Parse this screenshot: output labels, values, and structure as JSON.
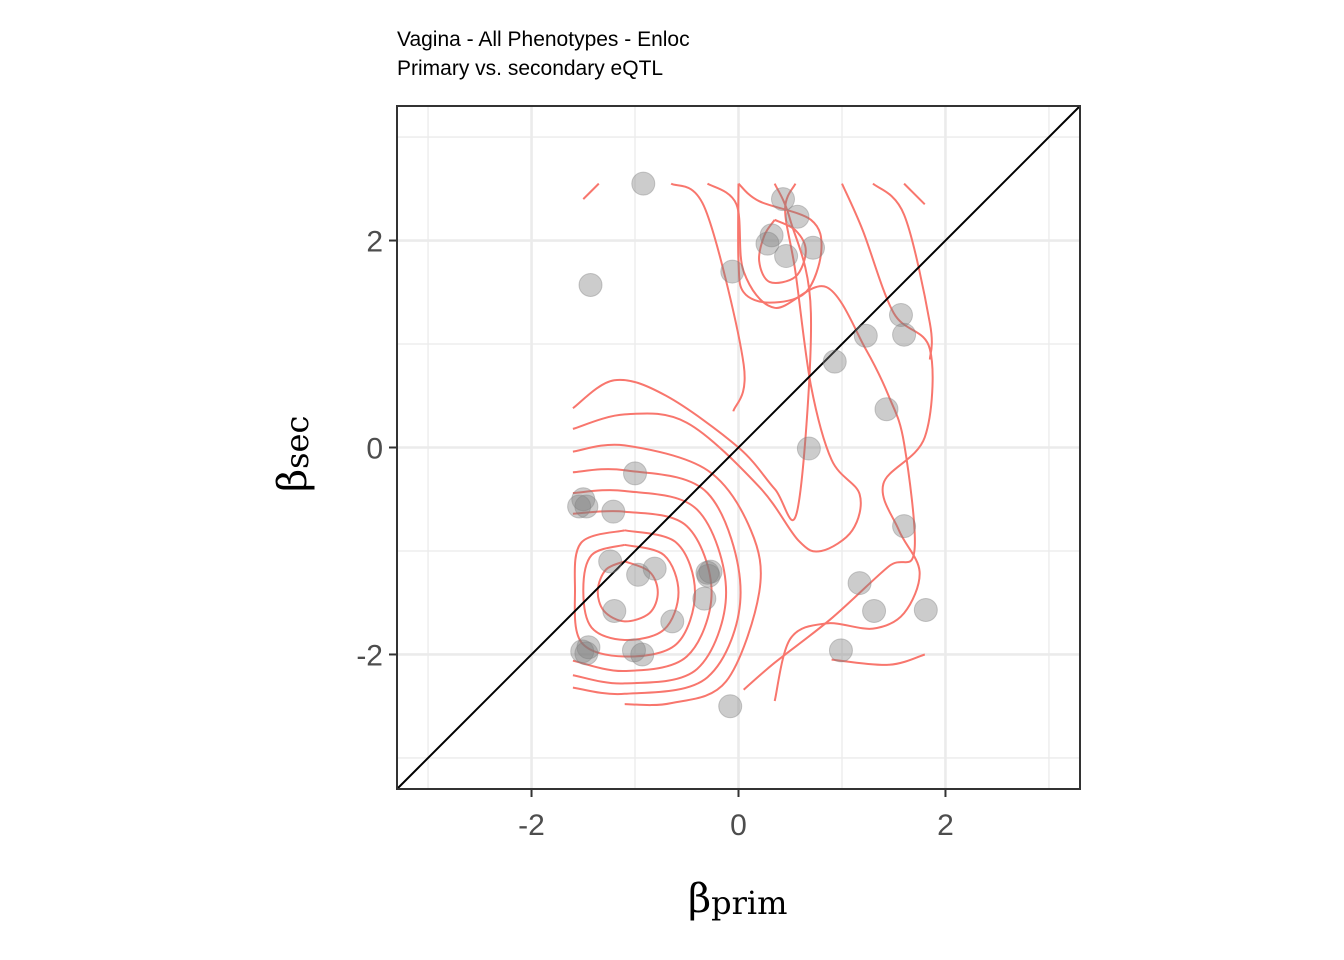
{
  "chart_data": {
    "type": "scatter",
    "title": "Vagina - All Phenotypes - Enloc",
    "subtitle": "Primary vs. secondary eQTL",
    "xlabel": {
      "symbol": "β",
      "subscript": "prim"
    },
    "ylabel": {
      "symbol": "β",
      "subscript": "sec"
    },
    "xlim": [
      -3.3,
      3.3
    ],
    "ylim": [
      -3.3,
      3.3
    ],
    "x_ticks": [
      -2,
      0,
      2
    ],
    "y_ticks": [
      -2,
      0,
      2
    ],
    "x_tick_labels": [
      "-2",
      "0",
      "2"
    ],
    "y_tick_labels": [
      "-2",
      "0",
      "2"
    ],
    "grid": true,
    "diagonal_line": true,
    "density_contours": true,
    "colors": {
      "points": "#808080",
      "contours": "#f8766d",
      "diagonal": "#000000",
      "grid": "#ebebeb",
      "panel_border": "#333333"
    },
    "series": [
      {
        "points": [
          {
            "x": -0.92,
            "y": 2.55
          },
          {
            "x": -1.43,
            "y": 1.57
          },
          {
            "x": 0.43,
            "y": 2.4
          },
          {
            "x": 0.57,
            "y": 2.23
          },
          {
            "x": 0.32,
            "y": 2.05
          },
          {
            "x": 0.28,
            "y": 1.97
          },
          {
            "x": 0.72,
            "y": 1.93
          },
          {
            "x": 0.46,
            "y": 1.85
          },
          {
            "x": -0.06,
            "y": 1.7
          },
          {
            "x": 1.57,
            "y": 1.28
          },
          {
            "x": 1.6,
            "y": 1.09
          },
          {
            "x": 1.23,
            "y": 1.08
          },
          {
            "x": 0.93,
            "y": 0.83
          },
          {
            "x": 1.43,
            "y": 0.37
          },
          {
            "x": 0.68,
            "y": -0.01
          },
          {
            "x": -1.0,
            "y": -0.25
          },
          {
            "x": -1.5,
            "y": -0.5
          },
          {
            "x": -1.54,
            "y": -0.57
          },
          {
            "x": -1.47,
            "y": -0.57
          },
          {
            "x": -1.21,
            "y": -0.62
          },
          {
            "x": 1.6,
            "y": -0.76
          },
          {
            "x": -1.24,
            "y": -1.1
          },
          {
            "x": -0.81,
            "y": -1.17
          },
          {
            "x": -0.97,
            "y": -1.23
          },
          {
            "x": -0.27,
            "y": -1.2
          },
          {
            "x": -0.29,
            "y": -1.24
          },
          {
            "x": -0.3,
            "y": -1.21
          },
          {
            "x": 1.17,
            "y": -1.31
          },
          {
            "x": -0.33,
            "y": -1.46
          },
          {
            "x": -1.2,
            "y": -1.58
          },
          {
            "x": 1.31,
            "y": -1.58
          },
          {
            "x": 1.81,
            "y": -1.57
          },
          {
            "x": -0.64,
            "y": -1.68
          },
          {
            "x": -1.45,
            "y": -1.93
          },
          {
            "x": -1.51,
            "y": -1.97
          },
          {
            "x": -1.47,
            "y": -1.99
          },
          {
            "x": -1.01,
            "y": -1.96
          },
          {
            "x": -0.93,
            "y": -2.0
          },
          {
            "x": 0.99,
            "y": -1.96
          },
          {
            "x": -0.08,
            "y": -2.5
          }
        ]
      }
    ],
    "contours": [
      [
        [
          -1.1,
          -1.1
        ],
        [
          -0.86,
          -1.2
        ],
        [
          -0.78,
          -1.4
        ],
        [
          -0.86,
          -1.6
        ],
        [
          -1.1,
          -1.68
        ],
        [
          -1.3,
          -1.58
        ],
        [
          -1.36,
          -1.38
        ],
        [
          -1.28,
          -1.18
        ],
        [
          -1.1,
          -1.1
        ]
      ],
      [
        [
          -1.1,
          -0.94
        ],
        [
          -0.72,
          -1.04
        ],
        [
          -0.58,
          -1.4
        ],
        [
          -0.72,
          -1.76
        ],
        [
          -1.1,
          -1.86
        ],
        [
          -1.42,
          -1.74
        ],
        [
          -1.5,
          -1.38
        ],
        [
          -1.42,
          -1.04
        ],
        [
          -1.1,
          -0.94
        ]
      ],
      [
        [
          -1.1,
          -0.8
        ],
        [
          -0.6,
          -0.92
        ],
        [
          -0.42,
          -1.4
        ],
        [
          -0.6,
          -1.9
        ],
        [
          -1.1,
          -2.02
        ],
        [
          -1.52,
          -1.88
        ],
        [
          -1.58,
          -1.38
        ],
        [
          -1.52,
          -0.92
        ],
        [
          -1.1,
          -0.8
        ]
      ],
      [
        [
          -1.6,
          -0.64
        ],
        [
          -1.1,
          -0.62
        ],
        [
          -0.5,
          -0.76
        ],
        [
          -0.26,
          -1.4
        ],
        [
          -0.5,
          -2.02
        ],
        [
          -1.1,
          -2.16
        ],
        [
          -1.6,
          -2.06
        ]
      ],
      [
        [
          -1.6,
          -0.44
        ],
        [
          -1.1,
          -0.42
        ],
        [
          -0.4,
          -0.6
        ],
        [
          -0.12,
          -1.4
        ],
        [
          -0.4,
          -2.14
        ],
        [
          -1.1,
          -2.28
        ],
        [
          -1.6,
          -2.2
        ]
      ],
      [
        [
          -1.6,
          -0.24
        ],
        [
          -1.1,
          -0.22
        ],
        [
          -0.3,
          -0.44
        ],
        [
          0.02,
          -1.4
        ],
        [
          -0.3,
          -2.22
        ],
        [
          -1.1,
          -2.38
        ],
        [
          -1.6,
          -2.32
        ]
      ],
      [
        [
          -1.6,
          -0.04
        ],
        [
          -1.1,
          0.02
        ],
        [
          -0.3,
          -0.22
        ],
        [
          0.12,
          -0.8
        ],
        [
          0.2,
          -1.4
        ],
        [
          -0.12,
          -2.26
        ],
        [
          -0.65,
          -2.47
        ],
        [
          -1.1,
          -2.48
        ]
      ],
      [
        [
          -1.6,
          0.18
        ],
        [
          -1.1,
          0.32
        ],
        [
          -0.5,
          0.24
        ],
        [
          0.2,
          -0.38
        ],
        [
          0.58,
          -0.9
        ],
        [
          0.8,
          -1.0
        ],
        [
          1.1,
          -0.8
        ],
        [
          1.17,
          -0.45
        ],
        [
          0.9,
          -0.12
        ],
        [
          0.7,
          0.6
        ],
        [
          0.55,
          1.7
        ],
        [
          0.45,
          2.3
        ],
        [
          0.55,
          2.55
        ]
      ],
      [
        [
          -1.6,
          0.38
        ],
        [
          -1.2,
          0.65
        ],
        [
          -0.7,
          0.5
        ],
        [
          0.0,
          0.0
        ],
        [
          0.35,
          -0.4
        ],
        [
          0.57,
          -0.6
        ],
        [
          0.7,
          1.3
        ],
        [
          0.5,
          2.2
        ],
        [
          0.35,
          2.55
        ]
      ],
      [
        [
          -1.5,
          2.4
        ],
        [
          -1.35,
          2.55
        ]
      ],
      [
        [
          -0.65,
          2.55
        ],
        [
          -0.32,
          2.3
        ],
        [
          0.05,
          0.8
        ],
        [
          -0.05,
          0.35
        ]
      ],
      [
        [
          -0.3,
          2.55
        ],
        [
          -0.02,
          2.35
        ],
        [
          0.05,
          1.7
        ],
        [
          0.35,
          1.35
        ],
        [
          0.85,
          1.55
        ],
        [
          1.23,
          0.95
        ],
        [
          1.45,
          0.5
        ],
        [
          1.6,
          0.04
        ],
        [
          1.7,
          -1.0
        ],
        [
          1.45,
          -1.15
        ],
        [
          0.9,
          -1.65
        ],
        [
          0.35,
          -2.08
        ],
        [
          0.05,
          -2.34
        ]
      ],
      [
        [
          0.0,
          2.55
        ],
        [
          0.2,
          2.38
        ],
        [
          0.7,
          2.2
        ],
        [
          0.8,
          1.9
        ],
        [
          0.65,
          1.5
        ],
        [
          0.3,
          1.4
        ],
        [
          0.05,
          1.5
        ],
        [
          0.0,
          1.8
        ],
        [
          0.0,
          2.55
        ]
      ],
      [
        [
          0.35,
          2.2
        ],
        [
          0.55,
          2.1
        ],
        [
          0.65,
          1.9
        ],
        [
          0.55,
          1.65
        ],
        [
          0.3,
          1.6
        ],
        [
          0.2,
          1.8
        ],
        [
          0.25,
          2.05
        ],
        [
          0.35,
          2.2
        ]
      ],
      [
        [
          1.0,
          2.55
        ],
        [
          1.2,
          2.1
        ],
        [
          1.5,
          1.3
        ],
        [
          1.85,
          0.95
        ],
        [
          1.8,
          0.1
        ],
        [
          1.4,
          -0.35
        ],
        [
          1.55,
          -0.8
        ],
        [
          1.75,
          -1.2
        ],
        [
          1.6,
          -1.6
        ],
        [
          1.3,
          -1.75
        ],
        [
          0.85,
          -1.7
        ],
        [
          0.5,
          -1.85
        ],
        [
          0.35,
          -2.45
        ]
      ],
      [
        [
          1.3,
          2.55
        ],
        [
          1.6,
          2.25
        ],
        [
          1.85,
          1.2
        ],
        [
          1.85,
          0.85
        ]
      ],
      [
        [
          1.6,
          2.55
        ],
        [
          1.8,
          2.35
        ]
      ],
      [
        [
          1.8,
          -2.0
        ],
        [
          1.45,
          -2.1
        ],
        [
          0.9,
          -2.05
        ]
      ]
    ]
  }
}
